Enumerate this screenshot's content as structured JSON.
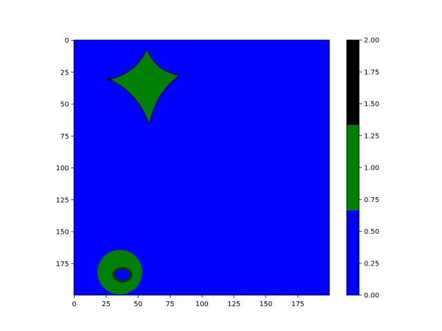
{
  "chart_data": {
    "type": "heatmap",
    "title": "",
    "xlabel": "",
    "ylabel": "",
    "grid": false,
    "x_range": [
      0,
      200
    ],
    "y_range": [
      0,
      200
    ],
    "y_inverted": true,
    "x_ticks": [
      "0",
      "25",
      "50",
      "75",
      "100",
      "125",
      "150",
      "175"
    ],
    "x_tick_values": [
      0,
      25,
      50,
      75,
      100,
      125,
      150,
      175
    ],
    "y_ticks": [
      "0",
      "25",
      "50",
      "75",
      "100",
      "125",
      "150",
      "175"
    ],
    "y_tick_values": [
      0,
      25,
      50,
      75,
      100,
      125,
      150,
      175
    ],
    "colormap": {
      "type": "discrete",
      "colors": [
        "#0000ff",
        "#008000",
        "#000000"
      ],
      "bounds": [
        0,
        0.6667,
        1.3333,
        2.0
      ]
    },
    "colorbar": {
      "range": [
        0,
        2
      ],
      "ticks": [
        "0.00",
        "0.25",
        "0.50",
        "0.75",
        "1.00",
        "1.25",
        "1.50",
        "1.75",
        "2.00"
      ],
      "tick_values": [
        0,
        0.25,
        0.5,
        0.75,
        1.0,
        1.25,
        1.5,
        1.75,
        2.0
      ]
    },
    "background_value": 0,
    "regions": [
      {
        "shape": "diamond",
        "value": 1,
        "border_value": 2,
        "center": [
          57,
          33
        ],
        "points": [
          [
            57,
            8
          ],
          [
            82,
            28
          ],
          [
            59,
            65
          ],
          [
            29,
            31
          ]
        ]
      },
      {
        "shape": "blob",
        "value": 1,
        "center": [
          36,
          182
        ],
        "x_span": [
          18,
          53
        ],
        "y_span": [
          165,
          200
        ],
        "holes_value": 0,
        "holes_center": [
          38,
          184
        ]
      }
    ]
  }
}
